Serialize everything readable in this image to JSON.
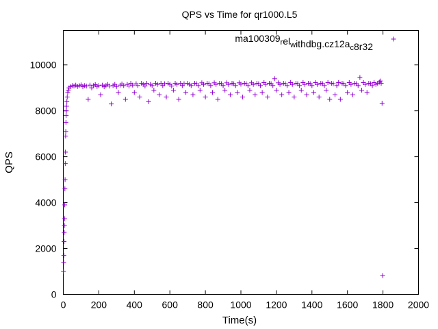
{
  "chart_data": {
    "type": "scatter",
    "title": "QPS vs Time for qr1000.L5",
    "xlabel": "Time(s)",
    "ylabel": "QPS",
    "xlim": [
      0,
      2000
    ],
    "ylim": [
      0,
      11500
    ],
    "xticks": [
      0,
      200,
      400,
      600,
      800,
      1000,
      1200,
      1400,
      1600,
      1800,
      2000
    ],
    "yticks": [
      0,
      2000,
      4000,
      6000,
      8000,
      10000
    ],
    "grid": false,
    "legend_position": "top-right",
    "series": [
      {
        "name_parts": [
          {
            "text": "ma100309",
            "baseline": "normal"
          },
          {
            "text": "r",
            "baseline": "sub"
          },
          {
            "text": "el",
            "baseline": "normal"
          },
          {
            "text": "w",
            "baseline": "sub"
          },
          {
            "text": "ithdbg.cz12a",
            "baseline": "normal"
          },
          {
            "text": "c",
            "baseline": "sub"
          },
          {
            "text": "8r32",
            "baseline": "normal"
          }
        ],
        "color": "#9400d3",
        "marker": "plus",
        "points": [
          [
            1,
            1000
          ],
          [
            2,
            1400
          ],
          [
            3,
            1700
          ],
          [
            4,
            2300
          ],
          [
            5,
            2700
          ],
          [
            6,
            3000
          ],
          [
            7,
            3300
          ],
          [
            8,
            3900
          ],
          [
            9,
            4600
          ],
          [
            10,
            5000
          ],
          [
            11,
            5700
          ],
          [
            12,
            6200
          ],
          [
            13,
            6900
          ],
          [
            14,
            7100
          ],
          [
            15,
            7500
          ],
          [
            16,
            7800
          ],
          [
            17,
            8000
          ],
          [
            18,
            8200
          ],
          [
            20,
            8400
          ],
          [
            22,
            8600
          ],
          [
            25,
            8800
          ],
          [
            28,
            8900
          ],
          [
            32,
            9000
          ],
          [
            40,
            9050
          ],
          [
            50,
            9100
          ],
          [
            60,
            9080
          ],
          [
            70,
            9120
          ],
          [
            80,
            9060
          ],
          [
            90,
            9100
          ],
          [
            100,
            9130
          ],
          [
            110,
            9050
          ],
          [
            120,
            9100
          ],
          [
            130,
            9080
          ],
          [
            140,
            8500
          ],
          [
            150,
            9120
          ],
          [
            160,
            9000
          ],
          [
            170,
            9100
          ],
          [
            180,
            9140
          ],
          [
            190,
            9060
          ],
          [
            200,
            9100
          ],
          [
            210,
            8700
          ],
          [
            220,
            9120
          ],
          [
            230,
            9050
          ],
          [
            240,
            9100
          ],
          [
            250,
            9150
          ],
          [
            260,
            9080
          ],
          [
            270,
            8300
          ],
          [
            280,
            9100
          ],
          [
            290,
            9150
          ],
          [
            300,
            9060
          ],
          [
            310,
            8800
          ],
          [
            320,
            9120
          ],
          [
            330,
            9170
          ],
          [
            340,
            9100
          ],
          [
            350,
            8500
          ],
          [
            360,
            9150
          ],
          [
            370,
            9080
          ],
          [
            380,
            9200
          ],
          [
            390,
            9120
          ],
          [
            400,
            8800
          ],
          [
            410,
            9180
          ],
          [
            420,
            9100
          ],
          [
            430,
            8600
          ],
          [
            440,
            9200
          ],
          [
            450,
            9150
          ],
          [
            460,
            9080
          ],
          [
            470,
            9200
          ],
          [
            480,
            8400
          ],
          [
            490,
            9150
          ],
          [
            500,
            9100
          ],
          [
            510,
            8900
          ],
          [
            520,
            9200
          ],
          [
            530,
            9150
          ],
          [
            540,
            8700
          ],
          [
            550,
            9200
          ],
          [
            560,
            9100
          ],
          [
            570,
            9180
          ],
          [
            580,
            8600
          ],
          [
            590,
            9200
          ],
          [
            600,
            9150
          ],
          [
            610,
            9080
          ],
          [
            620,
            8900
          ],
          [
            630,
            9200
          ],
          [
            640,
            9150
          ],
          [
            650,
            8500
          ],
          [
            660,
            9200
          ],
          [
            670,
            9100
          ],
          [
            680,
            9180
          ],
          [
            690,
            8800
          ],
          [
            700,
            9200
          ],
          [
            710,
            9150
          ],
          [
            720,
            9100
          ],
          [
            730,
            8700
          ],
          [
            740,
            9200
          ],
          [
            750,
            9180
          ],
          [
            760,
            9100
          ],
          [
            770,
            8900
          ],
          [
            780,
            9220
          ],
          [
            790,
            9150
          ],
          [
            800,
            8600
          ],
          [
            810,
            9200
          ],
          [
            820,
            9180
          ],
          [
            830,
            9100
          ],
          [
            840,
            8800
          ],
          [
            850,
            9220
          ],
          [
            860,
            9150
          ],
          [
            870,
            8500
          ],
          [
            880,
            9200
          ],
          [
            890,
            9180
          ],
          [
            900,
            9100
          ],
          [
            910,
            8900
          ],
          [
            920,
            9220
          ],
          [
            930,
            9150
          ],
          [
            940,
            8700
          ],
          [
            950,
            9200
          ],
          [
            960,
            9180
          ],
          [
            970,
            9100
          ],
          [
            980,
            8800
          ],
          [
            990,
            9220
          ],
          [
            1000,
            9160
          ],
          [
            1010,
            8600
          ],
          [
            1020,
            9200
          ],
          [
            1030,
            9180
          ],
          [
            1040,
            9100
          ],
          [
            1050,
            8900
          ],
          [
            1060,
            9220
          ],
          [
            1070,
            9150
          ],
          [
            1080,
            8700
          ],
          [
            1090,
            9200
          ],
          [
            1100,
            9180
          ],
          [
            1110,
            9100
          ],
          [
            1120,
            8800
          ],
          [
            1130,
            9230
          ],
          [
            1140,
            9150
          ],
          [
            1150,
            8600
          ],
          [
            1160,
            9200
          ],
          [
            1170,
            9180
          ],
          [
            1180,
            9100
          ],
          [
            1190,
            9400
          ],
          [
            1200,
            8900
          ],
          [
            1210,
            9220
          ],
          [
            1220,
            9150
          ],
          [
            1230,
            8700
          ],
          [
            1240,
            9200
          ],
          [
            1250,
            9180
          ],
          [
            1260,
            9100
          ],
          [
            1270,
            8800
          ],
          [
            1280,
            9230
          ],
          [
            1290,
            9150
          ],
          [
            1300,
            8600
          ],
          [
            1310,
            9200
          ],
          [
            1320,
            9180
          ],
          [
            1330,
            9100
          ],
          [
            1340,
            8900
          ],
          [
            1350,
            9230
          ],
          [
            1360,
            9150
          ],
          [
            1370,
            8700
          ],
          [
            1380,
            9200
          ],
          [
            1390,
            9180
          ],
          [
            1400,
            9100
          ],
          [
            1410,
            8800
          ],
          [
            1420,
            9230
          ],
          [
            1430,
            9150
          ],
          [
            1440,
            8600
          ],
          [
            1450,
            9200
          ],
          [
            1460,
            9180
          ],
          [
            1470,
            9100
          ],
          [
            1480,
            8900
          ],
          [
            1490,
            9230
          ],
          [
            1500,
            8500
          ],
          [
            1510,
            9200
          ],
          [
            1520,
            9180
          ],
          [
            1530,
            8700
          ],
          [
            1540,
            9100
          ],
          [
            1550,
            9230
          ],
          [
            1560,
            8500
          ],
          [
            1570,
            9200
          ],
          [
            1580,
            9180
          ],
          [
            1590,
            9100
          ],
          [
            1600,
            8800
          ],
          [
            1610,
            9230
          ],
          [
            1620,
            9150
          ],
          [
            1630,
            8700
          ],
          [
            1640,
            9200
          ],
          [
            1650,
            9180
          ],
          [
            1660,
            9100
          ],
          [
            1670,
            9450
          ],
          [
            1680,
            8900
          ],
          [
            1690,
            9230
          ],
          [
            1700,
            9150
          ],
          [
            1710,
            8800
          ],
          [
            1720,
            9200
          ],
          [
            1730,
            9180
          ],
          [
            1740,
            9100
          ],
          [
            1750,
            9230
          ],
          [
            1760,
            9150
          ],
          [
            1770,
            9200
          ],
          [
            1780,
            9250
          ],
          [
            1785,
            9300
          ],
          [
            1790,
            9200
          ],
          [
            1795,
            8330
          ],
          [
            1798,
            820
          ]
        ]
      }
    ]
  }
}
